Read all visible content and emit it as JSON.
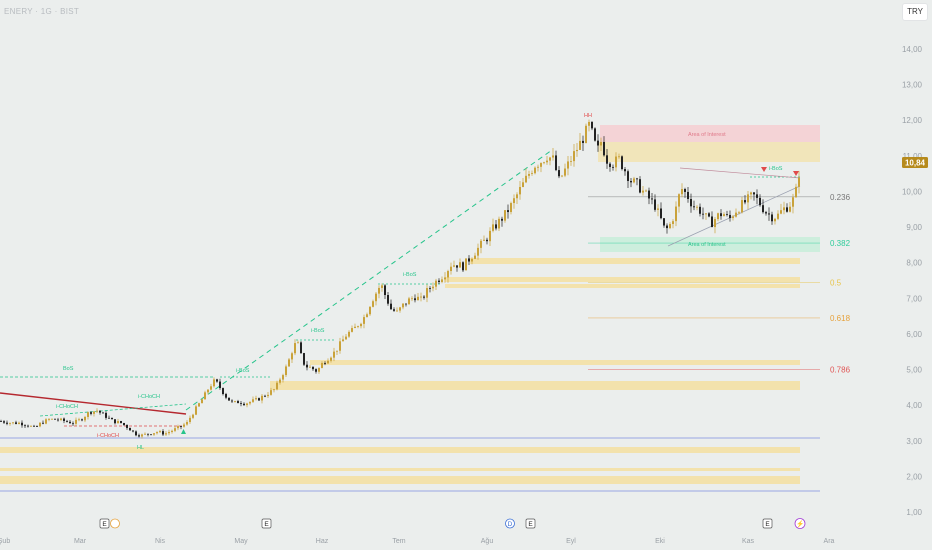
{
  "header": {
    "symbol_title": "ENERY · 1G · BIST",
    "currency_button": "TRY"
  },
  "price_axis": {
    "ticks": [
      "14,00",
      "13,00",
      "12,00",
      "11,00",
      "10,00",
      "9,00",
      "8,00",
      "7,00",
      "6,00",
      "5,00",
      "4,00",
      "3,00",
      "2,00",
      "1,00"
    ],
    "current_price": "10,84"
  },
  "time_axis": {
    "labels": [
      "Şub",
      "Mar",
      "Nis",
      "May",
      "Haz",
      "Tem",
      "Ağu",
      "Eyl",
      "Eki",
      "Kas",
      "Ara"
    ]
  },
  "structure_labels": {
    "hh": "HH",
    "hl": "HL",
    "bos": "BoS",
    "ibos": "i-BoS",
    "ichoch": "i-CHoCH",
    "aoi": "Area of Interest"
  },
  "fib_levels": [
    {
      "label": "0.236",
      "price": 9.85,
      "color": "#777777"
    },
    {
      "label": "0.382",
      "price": 8.55,
      "color": "#2ecc9a"
    },
    {
      "label": "0.5",
      "price": 7.45,
      "color": "#e8c44a"
    },
    {
      "label": "0.618",
      "price": 6.45,
      "color": "#e6a23c"
    },
    {
      "label": "0.786",
      "price": 5.0,
      "color": "#e05555"
    }
  ],
  "event_markers": [
    {
      "type": "E",
      "time": "Mar"
    },
    {
      "type": "E",
      "time": "May"
    },
    {
      "type": "D",
      "time": "Ağu"
    },
    {
      "type": "E",
      "time": "Ağu"
    },
    {
      "type": "E",
      "time": "Kas"
    },
    {
      "type": "⚡",
      "time": "Kas"
    }
  ],
  "colors": {
    "up": "#c9a23a",
    "down": "#222222",
    "aoi_red": "#f4d3d6",
    "aoi_green": "#cdeedd",
    "zone": "#f3e2ac",
    "bos": "#26c48b",
    "choch_red": "#e04b4b",
    "trend_red": "#b5282f",
    "blue_line": "#7f8fe0"
  },
  "chart_data": {
    "type": "candlestick",
    "y_range": [
      0.6,
      14.8
    ],
    "x_range_labels": [
      "Şub",
      "Ara"
    ],
    "price_path": [
      [
        0,
        3.55
      ],
      [
        10,
        3.5
      ],
      [
        18,
        3.5
      ],
      [
        26,
        3.45
      ],
      [
        34,
        3.35
      ],
      [
        40,
        3.5
      ],
      [
        48,
        3.6
      ],
      [
        56,
        3.6
      ],
      [
        64,
        3.55
      ],
      [
        72,
        3.5
      ],
      [
        80,
        3.6
      ],
      [
        88,
        3.8
      ],
      [
        96,
        3.85
      ],
      [
        104,
        3.7
      ],
      [
        112,
        3.55
      ],
      [
        120,
        3.5
      ],
      [
        128,
        3.35
      ],
      [
        134,
        3.2
      ],
      [
        140,
        3.15
      ],
      [
        148,
        3.2
      ],
      [
        156,
        3.25
      ],
      [
        164,
        3.2
      ],
      [
        172,
        3.3
      ],
      [
        180,
        3.4
      ],
      [
        186,
        3.5
      ],
      [
        190,
        3.7
      ],
      [
        196,
        3.95
      ],
      [
        202,
        4.2
      ],
      [
        208,
        4.5
      ],
      [
        214,
        4.7
      ],
      [
        220,
        4.45
      ],
      [
        226,
        4.2
      ],
      [
        232,
        4.05
      ],
      [
        238,
        4.1
      ],
      [
        244,
        4.05
      ],
      [
        250,
        4.1
      ],
      [
        256,
        4.15
      ],
      [
        262,
        4.25
      ],
      [
        268,
        4.35
      ],
      [
        274,
        4.45
      ],
      [
        280,
        4.8
      ],
      [
        286,
        5.1
      ],
      [
        292,
        5.6
      ],
      [
        296,
        5.8
      ],
      [
        300,
        5.4
      ],
      [
        304,
        5.1
      ],
      [
        310,
        5.05
      ],
      [
        316,
        4.95
      ],
      [
        322,
        5.2
      ],
      [
        328,
        5.35
      ],
      [
        334,
        5.5
      ],
      [
        340,
        5.75
      ],
      [
        346,
        6.0
      ],
      [
        352,
        6.1
      ],
      [
        358,
        6.3
      ],
      [
        364,
        6.5
      ],
      [
        370,
        6.9
      ],
      [
        376,
        7.2
      ],
      [
        380,
        7.4
      ],
      [
        384,
        7.1
      ],
      [
        390,
        6.7
      ],
      [
        396,
        6.6
      ],
      [
        402,
        6.8
      ],
      [
        408,
        6.95
      ],
      [
        414,
        7.05
      ],
      [
        420,
        6.95
      ],
      [
        426,
        7.2
      ],
      [
        432,
        7.4
      ],
      [
        438,
        7.55
      ],
      [
        444,
        7.7
      ],
      [
        450,
        7.95
      ],
      [
        456,
        7.95
      ],
      [
        462,
        7.9
      ],
      [
        468,
        8.1
      ],
      [
        474,
        8.3
      ],
      [
        480,
        8.5
      ],
      [
        486,
        8.7
      ],
      [
        492,
        8.95
      ],
      [
        498,
        9.15
      ],
      [
        504,
        9.35
      ],
      [
        510,
        9.6
      ],
      [
        516,
        9.9
      ],
      [
        522,
        10.2
      ],
      [
        528,
        10.5
      ],
      [
        534,
        10.75
      ],
      [
        540,
        10.85
      ],
      [
        546,
        11.0
      ],
      [
        552,
        10.9
      ],
      [
        558,
        10.3
      ],
      [
        564,
        10.6
      ],
      [
        570,
        10.9
      ],
      [
        576,
        11.2
      ],
      [
        582,
        11.5
      ],
      [
        588,
        11.85
      ],
      [
        592,
        11.55
      ],
      [
        596,
        11.1
      ],
      [
        600,
        11.4
      ],
      [
        606,
        10.9
      ],
      [
        612,
        10.8
      ],
      [
        618,
        10.9
      ],
      [
        624,
        10.6
      ],
      [
        630,
        10.3
      ],
      [
        636,
        10.2
      ],
      [
        642,
        10.0
      ],
      [
        648,
        9.8
      ],
      [
        654,
        9.6
      ],
      [
        660,
        9.2
      ],
      [
        664,
        8.9
      ],
      [
        668,
        9.0
      ],
      [
        674,
        9.4
      ],
      [
        680,
        10.1
      ],
      [
        686,
        9.9
      ],
      [
        692,
        9.6
      ],
      [
        698,
        9.5
      ],
      [
        704,
        9.3
      ],
      [
        710,
        9.1
      ],
      [
        716,
        9.3
      ],
      [
        722,
        9.4
      ],
      [
        728,
        9.2
      ],
      [
        734,
        9.45
      ],
      [
        740,
        9.6
      ],
      [
        746,
        9.75
      ],
      [
        752,
        9.9
      ],
      [
        758,
        9.7
      ],
      [
        764,
        9.45
      ],
      [
        770,
        9.3
      ],
      [
        776,
        9.3
      ],
      [
        782,
        9.5
      ],
      [
        788,
        9.6
      ],
      [
        794,
        9.85
      ],
      [
        800,
        10.84
      ]
    ]
  }
}
